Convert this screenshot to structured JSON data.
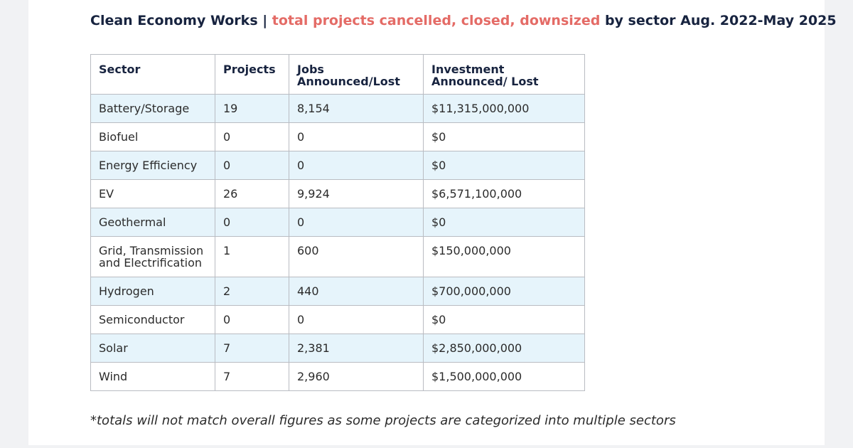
{
  "headline": {
    "prefix": "Clean Economy Works | ",
    "accent": "total projects cancelled, closed, downsized",
    "suffix": " by sector Aug. 2022-May 2025",
    "accent_color": "#e46b66",
    "text_color": "#17233f"
  },
  "colors": {
    "row_shade": "#e6f4fb",
    "border": "#b9bcc2",
    "page_background": "#ffffff",
    "outer_background": "#f1f2f4"
  },
  "footnote": "*totals will not match overall figures as some projects are categorized into multiple sectors",
  "chart_data": {
    "type": "table",
    "columns": [
      "Sector",
      "Projects",
      "Jobs Announced/Lost",
      "Investment Announced/ Lost"
    ],
    "header_lines": [
      [
        "Sector"
      ],
      [
        "Projects"
      ],
      [
        "Jobs",
        "Announced/Lost"
      ],
      [
        "Investment",
        "Announced/ Lost"
      ]
    ],
    "rows": [
      {
        "sector_lines": [
          "Battery/Storage"
        ],
        "projects": "19",
        "jobs": "8,154",
        "investment": "$11,315,000,000"
      },
      {
        "sector_lines": [
          "Biofuel"
        ],
        "projects": "0",
        "jobs": "0",
        "investment": "$0"
      },
      {
        "sector_lines": [
          "Energy Efficiency"
        ],
        "projects": "0",
        "jobs": "0",
        "investment": "$0"
      },
      {
        "sector_lines": [
          "EV"
        ],
        "projects": "26",
        "jobs": "9,924",
        "investment": "$6,571,100,000"
      },
      {
        "sector_lines": [
          "Geothermal"
        ],
        "projects": "0",
        "jobs": "0",
        "investment": "$0"
      },
      {
        "sector_lines": [
          "Grid, Transmission",
          "and Electrification"
        ],
        "projects": "1",
        "jobs": "600",
        "investment": "$150,000,000"
      },
      {
        "sector_lines": [
          "Hydrogen"
        ],
        "projects": "2",
        "jobs": "440",
        "investment": "$700,000,000"
      },
      {
        "sector_lines": [
          "Semiconductor"
        ],
        "projects": "0",
        "jobs": "0",
        "investment": "$0"
      },
      {
        "sector_lines": [
          "Solar"
        ],
        "projects": "7",
        "jobs": "2,381",
        "investment": "$2,850,000,000"
      },
      {
        "sector_lines": [
          "Wind"
        ],
        "projects": "7",
        "jobs": "2,960",
        "investment": "$1,500,000,000"
      }
    ]
  }
}
